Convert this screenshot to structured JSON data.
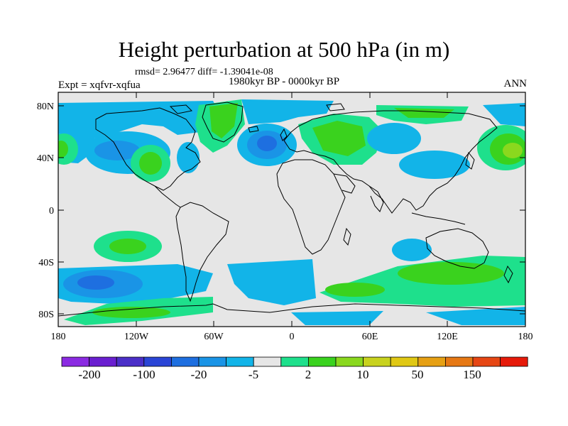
{
  "title": "Height perturbation at 500 hPa (in m)",
  "stats_text": "rmsd= 2.96477 diff= -1.39041e-08",
  "experiment": "Expt = xqfvr-xqfua",
  "period": "1980kyr BP - 0000kyr BP",
  "season": "ANN",
  "lon_ticks": [
    "180",
    "120W",
    "60W",
    "0",
    "60E",
    "120E",
    "180"
  ],
  "lat_ticks": [
    "80N",
    "40N",
    "0",
    "40S",
    "80S"
  ],
  "colorbar": {
    "colors": [
      "#8b2be2",
      "#6a1fd0",
      "#4b2fc8",
      "#2a45d6",
      "#1e6fe0",
      "#1a94e6",
      "#12b4e8",
      "#e6e6e6",
      "#1ee08c",
      "#3ad21e",
      "#8ad81e",
      "#c8d21e",
      "#e0c814",
      "#e6a014",
      "#e67814",
      "#e64614",
      "#e61a0a"
    ],
    "labels": [
      "-200",
      "-100",
      "-20",
      "-5",
      "2",
      "10",
      "50",
      "150"
    ]
  }
}
